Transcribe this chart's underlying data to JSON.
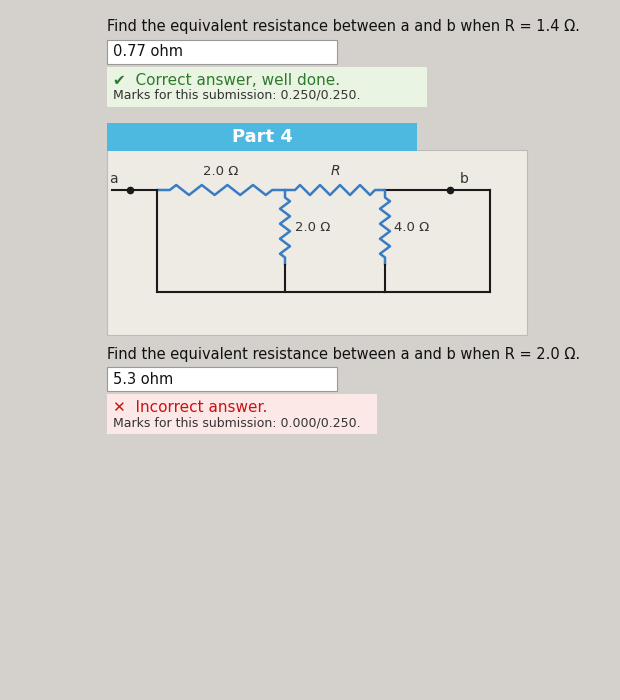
{
  "bg_color": "#d4d0cb",
  "white_bg": "#ffffff",
  "question1_text": "Find the equivalent resistance between a and b when R = 1.4 Ω.",
  "answer1": "0.77 ohm",
  "correct_text": "✔  Correct answer, well done.",
  "correct_marks": "Marks for this submission: 0.250/0.250.",
  "correct_bg": "#eaf4e2",
  "part4_text": "Part 4",
  "part4_bg": "#4db8e0",
  "circuit_bg": "#eeebe4",
  "resistor_color": "#3a7cc4",
  "wire_color": "#1a1a1a",
  "label_2ohm_top": "2.0 Ω",
  "label_R": "R",
  "label_2ohm_bot": "2.0 Ω",
  "label_4ohm": "4.0 Ω",
  "label_a": "a",
  "label_b": "b",
  "question2_text": "Find the equivalent resistance between a and b when R = 2.0 Ω.",
  "answer2": "5.3 ohm",
  "incorrect_text": "✕  Incorrect answer.",
  "incorrect_marks": "Marks for this submission: 0.000/0.250.",
  "incorrect_bg": "#fde8e8"
}
